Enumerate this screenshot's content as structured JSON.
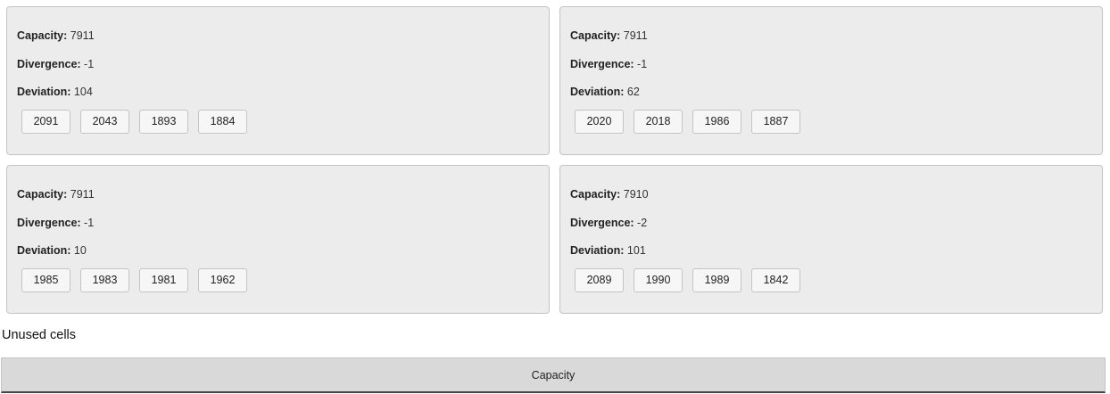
{
  "labels": {
    "capacity": "Capacity:",
    "divergence": "Divergence:",
    "deviation": "Deviation:"
  },
  "cards": [
    {
      "capacity": "7911",
      "divergence": "-1",
      "deviation": "104",
      "cells": [
        "2091",
        "2043",
        "1893",
        "1884"
      ]
    },
    {
      "capacity": "7911",
      "divergence": "-1",
      "deviation": "62",
      "cells": [
        "2020",
        "2018",
        "1986",
        "1887"
      ]
    },
    {
      "capacity": "7911",
      "divergence": "-1",
      "deviation": "10",
      "cells": [
        "1985",
        "1983",
        "1981",
        "1962"
      ]
    },
    {
      "capacity": "7910",
      "divergence": "-2",
      "deviation": "101",
      "cells": [
        "2089",
        "1990",
        "1989",
        "1842"
      ]
    }
  ],
  "unused": {
    "title": "Unused cells",
    "columns": [
      "Capacity"
    ]
  }
}
